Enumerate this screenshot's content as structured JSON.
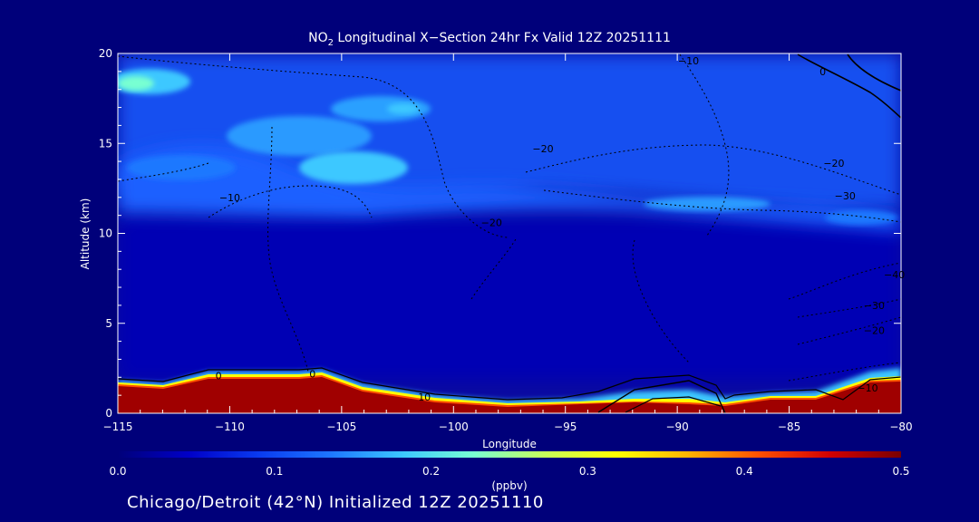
{
  "chart_data": {
    "type": "heatmap",
    "title_prefix": "NO",
    "title_sub": "2",
    "title_rest": " Longitudinal X−Section 24hr  Fx Valid 12Z 20251111",
    "xlabel": "Longitude",
    "ylabel": "Altitude (km)",
    "xlim": [
      -115,
      -80
    ],
    "ylim": [
      0,
      20
    ],
    "x_ticks": [
      -115,
      -110,
      -105,
      -100,
      -95,
      -90,
      -85,
      -80
    ],
    "x_tick_labels": [
      "−115",
      "−110",
      "−105",
      "−100",
      "−95",
      "−90",
      "−85",
      "−80"
    ],
    "y_ticks": [
      0,
      5,
      10,
      15,
      20
    ],
    "y_tick_labels": [
      "0",
      "5",
      "10",
      "15",
      "20"
    ],
    "colorbar": {
      "label": "(ppbv)",
      "range": [
        0.0,
        0.5
      ],
      "ticks": [
        0.0,
        0.1,
        0.2,
        0.3,
        0.4,
        0.5
      ],
      "tick_labels": [
        "0.0",
        "0.1",
        "0.2",
        "0.3",
        "0.4",
        "0.5"
      ],
      "colormap": [
        "#00007a",
        "#0000c8",
        "#0a3cf0",
        "#1e78ff",
        "#3cc8ff",
        "#78ffd2",
        "#c8ff5a",
        "#ffff00",
        "#ffb400",
        "#ff5000",
        "#d20000",
        "#7a0000"
      ]
    },
    "contour_labels": [
      {
        "text": "−10",
        "lon": -89.5,
        "alt": 19.6
      },
      {
        "text": "0",
        "lon": -83.5,
        "alt": 19.0
      },
      {
        "text": "−20",
        "lon": -96.0,
        "alt": 14.7
      },
      {
        "text": "−20",
        "lon": -83.0,
        "alt": 13.9
      },
      {
        "text": "−30",
        "lon": -82.5,
        "alt": 12.1
      },
      {
        "text": "−10",
        "lon": -110.0,
        "alt": 12.0
      },
      {
        "text": "−20",
        "lon": -98.3,
        "alt": 10.6
      },
      {
        "text": "−40",
        "lon": -80.3,
        "alt": 7.7
      },
      {
        "text": "−30",
        "lon": -81.2,
        "alt": 6.0
      },
      {
        "text": "−20",
        "lon": -81.2,
        "alt": 4.6
      },
      {
        "text": "0",
        "lon": -110.5,
        "alt": 2.1
      },
      {
        "text": "0",
        "lon": -106.3,
        "alt": 2.2
      },
      {
        "text": "10",
        "lon": -101.3,
        "alt": 0.9
      },
      {
        "text": "−10",
        "lon": -81.5,
        "alt": 1.4
      }
    ]
  },
  "footer": "Chicago/Detroit (42°N) Initialized 12Z 20251110"
}
